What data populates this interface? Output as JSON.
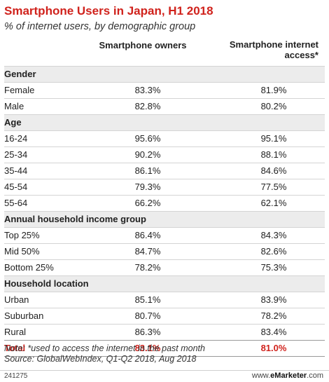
{
  "chart_data": {
    "type": "table",
    "title": "Smartphone Users in Japan, H1 2018",
    "subtitle": "% of internet users, by demographic group",
    "columns": [
      "Smartphone owners",
      "Smartphone internet access*"
    ],
    "rows": [
      {
        "section": "Gender"
      },
      {
        "label": "Female",
        "values": [
          "83.3%",
          "81.9%"
        ]
      },
      {
        "label": "Male",
        "values": [
          "82.8%",
          "80.2%"
        ]
      },
      {
        "section": "Age"
      },
      {
        "label": "16-24",
        "values": [
          "95.6%",
          "95.1%"
        ]
      },
      {
        "label": "25-34",
        "values": [
          "90.2%",
          "88.1%"
        ]
      },
      {
        "label": "35-44",
        "values": [
          "86.1%",
          "84.6%"
        ]
      },
      {
        "label": "45-54",
        "values": [
          "79.3%",
          "77.5%"
        ]
      },
      {
        "label": "55-64",
        "values": [
          "66.2%",
          "62.1%"
        ]
      },
      {
        "section": "Annual household income group"
      },
      {
        "label": "Top 25%",
        "values": [
          "86.4%",
          "84.3%"
        ]
      },
      {
        "label": "Mid 50%",
        "values": [
          "84.7%",
          "82.6%"
        ]
      },
      {
        "label": "Bottom 25%",
        "values": [
          "78.2%",
          "75.3%"
        ]
      },
      {
        "section": "Household location"
      },
      {
        "label": "Urban",
        "values": [
          "85.1%",
          "83.9%"
        ]
      },
      {
        "label": "Suburban",
        "values": [
          "80.7%",
          "78.2%"
        ]
      },
      {
        "label": "Rural",
        "values": [
          "86.3%",
          "83.4%"
        ]
      },
      {
        "label": "Total",
        "values": [
          "83.1%",
          "81.0%"
        ],
        "total": true
      }
    ]
  },
  "header": {
    "col1": "Smartphone owners",
    "col2_line1": "Smartphone internet",
    "col2_line2": "access*"
  },
  "notes": {
    "note": "Note: *used to access the internet in the past month",
    "source": "Source: GlobalWebIndex, Q1-Q2 2018, Aug 2018"
  },
  "footer": {
    "id": "241275",
    "brand_prefix": "www.",
    "brand_name": "eMarketer",
    "brand_suffix": ".com"
  },
  "colors": {
    "accent": "#d0221c",
    "section_bg": "#ececec"
  }
}
